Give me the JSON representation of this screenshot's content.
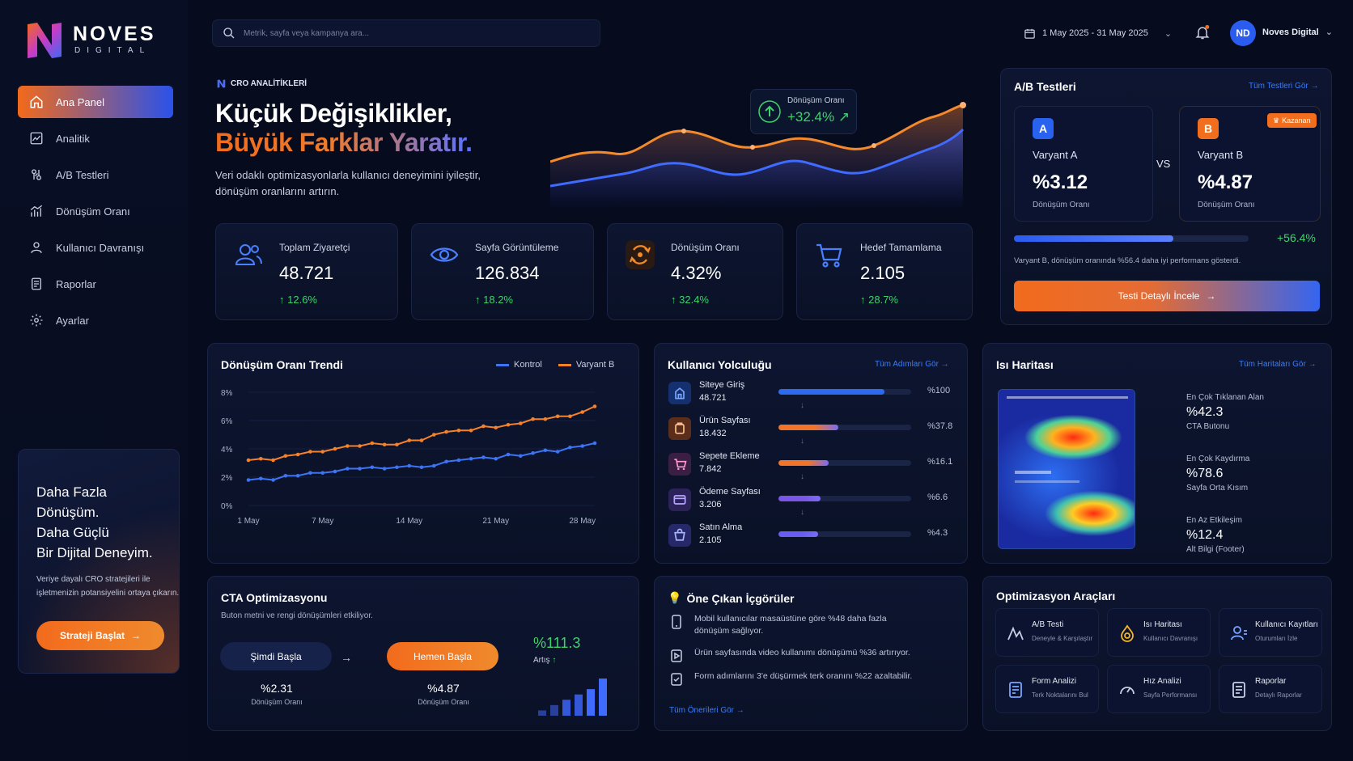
{
  "brand": {
    "name": "NOVES",
    "sub": "DIGITAL"
  },
  "nav": [
    {
      "label": "Ana Panel",
      "icon": "home-icon",
      "active": true
    },
    {
      "label": "Analitik",
      "icon": "analytics-icon"
    },
    {
      "label": "A/B Testleri",
      "icon": "ab-test-icon"
    },
    {
      "label": "Dönüşüm Oranı",
      "icon": "conversion-icon"
    },
    {
      "label": "Kullanıcı Davranışı",
      "icon": "user-icon"
    },
    {
      "label": "Raporlar",
      "icon": "report-icon"
    },
    {
      "label": "Ayarlar",
      "icon": "gear-icon"
    }
  ],
  "promo": {
    "title_lines": [
      "Daha Fazla",
      "Dönüşüm.",
      "Daha Güçlü",
      "Bir Dijital Deneyim."
    ],
    "desc": "Veriye dayalı CRO stratejileri ile işletmenizin potansiyelini ortaya çıkarın.",
    "button": "Strateji Başlat"
  },
  "header": {
    "search_placeholder": "Metrik, sayfa veya kampanya ara...",
    "date_range": "1 May 2025 - 31 May 2025",
    "user_initials": "ND",
    "user_name": "Noves Digital"
  },
  "hero": {
    "badge": "CRO ANALİTİKLERİ",
    "title1": "Küçük Değişiklikler,",
    "title2": "Büyük Farklar Yaratır.",
    "desc": "Veri odaklı optimizasyonlarla kullanıcı deneyimini iyileştir, dönüşüm oranlarını artırın.",
    "pill_label": "Dönüşüm Oranı",
    "pill_value": "+32.4%"
  },
  "kpis": [
    {
      "title": "Toplam Ziyaretçi",
      "value": "48.721",
      "change": "12.6%",
      "icon": "users-icon"
    },
    {
      "title": "Sayfa Görüntüleme",
      "value": "126.834",
      "change": "18.2%",
      "icon": "eye-icon"
    },
    {
      "title": "Dönüşüm Oranı",
      "value": "4.32%",
      "change": "32.4%",
      "icon": "conversion-cycle-icon"
    },
    {
      "title": "Hedef Tamamlama",
      "value": "2.105",
      "change": "28.7%",
      "icon": "cart-icon"
    }
  ],
  "ab": {
    "title": "A/B Testleri",
    "link": "Tüm Testleri Gör",
    "a": {
      "badge": "A",
      "name": "Varyant A",
      "value": "%3.12",
      "label": "Dönüşüm Oranı"
    },
    "b": {
      "badge": "B",
      "name": "Varyant B",
      "value": "%4.87",
      "label": "Dönüşüm Oranı",
      "winner": "Kazanan"
    },
    "vs": "VS",
    "uplift": "+56.4%",
    "uplift_fraction": 0.68,
    "note": "Varyant B, dönüşüm oranında %56.4 daha iyi performans gösterdi.",
    "button": "Testi Detaylı İncele"
  },
  "trend": {
    "title": "Dönüşüm Oranı Trendi",
    "legend": [
      "Kontrol",
      "Varyant B"
    ],
    "colors": {
      "kontrol": "#3d74f5",
      "varyant": "#f5822b"
    }
  },
  "chart_data": {
    "type": "line",
    "x": [
      "1 May",
      "2 May",
      "3 May",
      "4 May",
      "5 May",
      "6 May",
      "7 May",
      "8 May",
      "9 May",
      "10 May",
      "11 May",
      "12 May",
      "13 May",
      "14 May",
      "15 May",
      "16 May",
      "17 May",
      "18 May",
      "19 May",
      "20 May",
      "21 May",
      "22 May",
      "23 May",
      "24 May",
      "25 May",
      "26 May",
      "27 May",
      "28 May",
      "29 May"
    ],
    "x_ticks": [
      "1 May",
      "7 May",
      "14 May",
      "21 May",
      "28 May"
    ],
    "y_ticks": [
      "0%",
      "2%",
      "4%",
      "6%",
      "8%"
    ],
    "ylim": [
      0,
      8
    ],
    "series": [
      {
        "name": "Kontrol",
        "values": [
          1.8,
          1.9,
          1.8,
          2.1,
          2.1,
          2.3,
          2.3,
          2.4,
          2.6,
          2.6,
          2.7,
          2.6,
          2.7,
          2.8,
          2.7,
          2.8,
          3.1,
          3.2,
          3.3,
          3.4,
          3.3,
          3.6,
          3.5,
          3.7,
          3.9,
          3.8,
          4.1,
          4.2,
          4.4
        ]
      },
      {
        "name": "Varyant B",
        "values": [
          3.2,
          3.3,
          3.2,
          3.5,
          3.6,
          3.8,
          3.8,
          4.0,
          4.2,
          4.2,
          4.4,
          4.3,
          4.3,
          4.6,
          4.6,
          5.0,
          5.2,
          5.3,
          5.3,
          5.6,
          5.5,
          5.7,
          5.8,
          6.1,
          6.1,
          6.3,
          6.3,
          6.6,
          7.0
        ]
      }
    ]
  },
  "journey": {
    "title": "Kullanıcı Yolculuğu",
    "link": "Tüm Adımları Gör",
    "steps": [
      {
        "name": "Siteye Giriş",
        "value": "48.721",
        "pct": "%100",
        "fraction": 0.8,
        "color": "#2c6bf0",
        "icon": "entry-icon"
      },
      {
        "name": "Ürün Sayfası",
        "value": "18.432",
        "pct": "%37.8",
        "fraction": 0.45,
        "color": "#f0742a",
        "icon": "product-icon"
      },
      {
        "name": "Sepete Ekleme",
        "value": "7.842",
        "pct": "%16.1",
        "fraction": 0.38,
        "color": "#f0742a",
        "icon": "cart-icon"
      },
      {
        "name": "Ödeme Sayfası",
        "value": "3.206",
        "pct": "%6.6",
        "fraction": 0.32,
        "color": "#7a55e8",
        "icon": "payment-icon"
      },
      {
        "name": "Satın Alma",
        "value": "2.105",
        "pct": "%4.3",
        "fraction": 0.3,
        "color": "#6a5cf0",
        "icon": "purchase-icon"
      }
    ]
  },
  "heatmap": {
    "title": "Isı Haritası",
    "link": "Tüm Haritaları Gör",
    "stats": [
      {
        "label": "En Çok Tıklanan Alan",
        "value": "%42.3",
        "sub": "CTA Butonu"
      },
      {
        "label": "En Çok Kaydırma",
        "value": "%78.6",
        "sub": "Sayfa Orta Kısım"
      },
      {
        "label": "En Az Etkileşim",
        "value": "%12.4",
        "sub": "Alt Bilgi (Footer)"
      }
    ]
  },
  "cta": {
    "title": "CTA Optimizasyonu",
    "desc": "Buton metni ve rengi dönüşümleri etkiliyor.",
    "old_label": "Şimdi Başla",
    "old_value": "%2.31",
    "new_label": "Hemen Başla",
    "new_value": "%4.87",
    "caption": "Dönüşüm Oranı",
    "increase": "%111.3",
    "increase_label": "Artış",
    "bars": [
      1,
      2,
      3,
      4,
      5,
      7
    ]
  },
  "insights": {
    "title": "Öne Çıkan İçgörüler",
    "items": [
      "Mobil kullanıcılar masaüstüne göre %48 daha fazla dönüşüm sağlıyor.",
      "Ürün sayfasında video kullanımı dönüşümü %36 artırıyor.",
      "Form adımlarını 3'e düşürmek terk oranını %22 azaltabilir."
    ],
    "link": "Tüm Önerileri Gör"
  },
  "tools": {
    "title": "Optimizasyon Araçları",
    "items": [
      {
        "name": "A/B Testi",
        "sub": "Deneyle & Karşılaştır",
        "icon": "ab-tool-icon"
      },
      {
        "name": "Isı Haritası",
        "sub": "Kullanıcı Davranışı",
        "icon": "heat-icon"
      },
      {
        "name": "Kullanıcı Kayıtları",
        "sub": "Oturumları İzle",
        "icon": "recording-icon"
      },
      {
        "name": "Form Analizi",
        "sub": "Terk Noktalarını Bul",
        "icon": "form-icon"
      },
      {
        "name": "Hız Analizi",
        "sub": "Sayfa Performansı",
        "icon": "speed-icon"
      },
      {
        "name": "Raporlar",
        "sub": "Detaylı Raporlar",
        "icon": "report-icon"
      }
    ]
  }
}
